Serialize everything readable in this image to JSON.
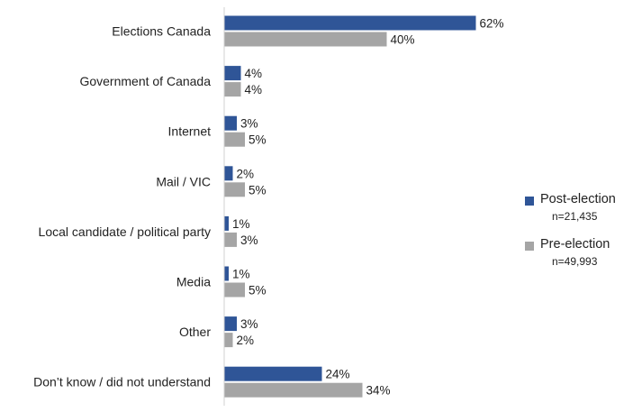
{
  "chart_data": {
    "type": "bar",
    "orientation": "horizontal",
    "categories": [
      "Elections Canada",
      "Government of Canada",
      "Internet",
      "Mail / VIC",
      "Local candidate / political party",
      "Media",
      "Other",
      "Don’t know / did not understand"
    ],
    "series": [
      {
        "name": "Post-election",
        "n": "n=21,435",
        "color": "#2f5597",
        "values": [
          62,
          4,
          3,
          2,
          1,
          1,
          3,
          24
        ]
      },
      {
        "name": "Pre-election",
        "n": "n=49,993",
        "color": "#a5a5a5",
        "values": [
          40,
          4,
          5,
          5,
          3,
          5,
          2,
          34
        ]
      }
    ],
    "value_suffix": "%",
    "xlim": [
      0,
      70
    ],
    "legend": "right",
    "grid": false
  }
}
